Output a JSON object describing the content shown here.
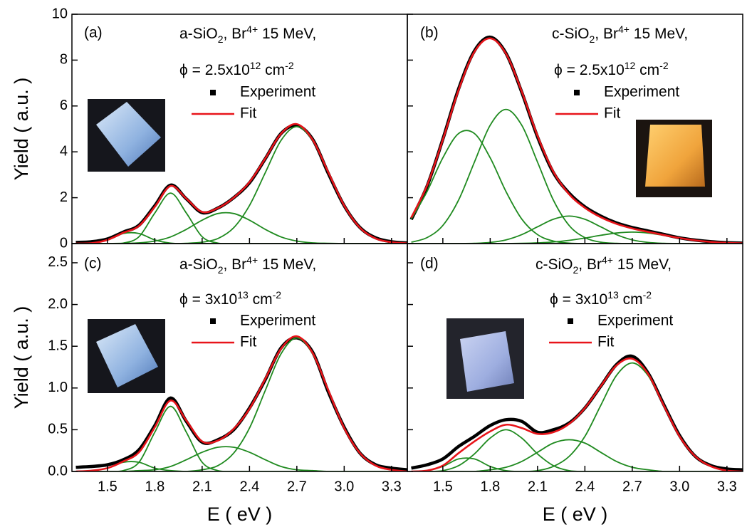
{
  "chart_data": [
    {
      "type": "line",
      "label": "(a)",
      "sample": [
        {
          "text": "a-SiO"
        },
        {
          "sub": "2"
        },
        {
          "text": ", Br"
        },
        {
          "sup": "4+"
        },
        {
          "text": " 15 MeV,"
        }
      ],
      "fluence": [
        {
          "text": "ϕ = 2.5x10"
        },
        {
          "sup": "12"
        },
        {
          "text": " cm"
        },
        {
          "sup": "-2"
        }
      ],
      "ylabel": "Yield ( a.u. )",
      "x": [
        1.3,
        1.4,
        1.5,
        1.6,
        1.7,
        1.8,
        1.9,
        2,
        2.1,
        2.2,
        2.3,
        2.4,
        2.5,
        2.6,
        2.7,
        2.8,
        2.9,
        3,
        3.1,
        3.2,
        3.3,
        3.4
      ],
      "series": [
        {
          "name": "Experiment",
          "color": "#000000",
          "marker": "square",
          "values": [
            0.05,
            0.08,
            0.2,
            0.5,
            0.8,
            1.65,
            2.55,
            1.95,
            1.35,
            1.55,
            2,
            2.65,
            3.7,
            4.8,
            5.15,
            4.55,
            3.05,
            1.65,
            0.7,
            0.25,
            0.08,
            0.03
          ]
        },
        {
          "name": "Fit",
          "color": "#e8141a",
          "values": [
            0,
            0.02,
            0.16,
            0.47,
            0.77,
            1.6,
            2.51,
            1.96,
            1.38,
            1.55,
            2,
            2.68,
            3.71,
            4.79,
            5.21,
            4.53,
            3.1,
            1.66,
            0.69,
            0.22,
            0.06,
            0.01
          ]
        },
        {
          "color": "#1f8a1f",
          "values": [
            0,
            0.02,
            0.16,
            0.44,
            0.44,
            0.16,
            0.02,
            0,
            0,
            0,
            0,
            0,
            0,
            0,
            0,
            0,
            0,
            0,
            0,
            0,
            0,
            0
          ]
        },
        {
          "color": "#1f8a1f",
          "values": [
            0,
            0,
            0,
            0.02,
            0.3,
            1.33,
            2.2,
            1.33,
            0.3,
            0.02,
            0,
            0,
            0,
            0,
            0,
            0,
            0,
            0,
            0,
            0,
            0,
            0
          ]
        },
        {
          "color": "#1f8a1f",
          "values": [
            0,
            0,
            0,
            0.01,
            0.03,
            0.11,
            0.29,
            0.62,
            1.02,
            1.31,
            1.31,
            1.02,
            0.62,
            0.29,
            0.11,
            0.03,
            0.01,
            0,
            0,
            0,
            0,
            0
          ]
        },
        {
          "color": "#1f8a1f",
          "values": [
            0,
            0,
            0,
            0,
            0,
            0,
            0,
            0.01,
            0.06,
            0.22,
            0.69,
            1.66,
            3.09,
            4.5,
            5.1,
            4.5,
            3.09,
            1.66,
            0.69,
            0.22,
            0.06,
            0.01
          ]
        }
      ],
      "xlim": [
        1.275,
        3.4
      ],
      "xticks": [
        1.5,
        1.8,
        2.1,
        2.4,
        2.7,
        3,
        3.3
      ],
      "xtick_labels": false,
      "ylim": [
        0,
        10
      ],
      "yticks": [
        0,
        2,
        4,
        6,
        8,
        10
      ],
      "ytick_labels": true
    },
    {
      "type": "line",
      "label": "(b)",
      "sample": [
        {
          "text": "c-SiO"
        },
        {
          "sub": "2"
        },
        {
          "text": ", Br"
        },
        {
          "sup": "4+"
        },
        {
          "text": " 15 MeV,"
        }
      ],
      "fluence": [
        {
          "text": "ϕ = 2.5x10"
        },
        {
          "sup": "12"
        },
        {
          "text": " cm"
        },
        {
          "sup": "-2"
        }
      ],
      "x": [
        1.3,
        1.4,
        1.5,
        1.6,
        1.7,
        1.8,
        1.9,
        2,
        2.1,
        2.2,
        2.3,
        2.4,
        2.5,
        2.6,
        2.7,
        2.8,
        2.9,
        3,
        3.1,
        3.2,
        3.3,
        3.4
      ],
      "series": [
        {
          "name": "Experiment",
          "color": "#000000",
          "marker": "square",
          "values": [
            1.05,
            2.5,
            4.55,
            6.75,
            8.4,
            9,
            8.3,
            6.6,
            4.65,
            3.1,
            2.2,
            1.6,
            1.2,
            0.9,
            0.7,
            0.55,
            0.4,
            0.25,
            0.15,
            0.08,
            0.04,
            0.02
          ]
        },
        {
          "name": "Fit",
          "color": "#e8141a",
          "values": [
            1.13,
            2.53,
            4.53,
            6.7,
            8.36,
            8.95,
            8.28,
            6.63,
            4.7,
            3.14,
            2.15,
            1.56,
            1.15,
            0.86,
            0.66,
            0.51,
            0.37,
            0.24,
            0.14,
            0.07,
            0.03,
            0.01
          ]
        },
        {
          "color": "#1f8a1f",
          "values": [
            1.07,
            2.27,
            3.74,
            4.8,
            4.8,
            3.74,
            2.27,
            1.07,
            0.39,
            0.11,
            0.02,
            0,
            0,
            0,
            0,
            0,
            0,
            0,
            0,
            0,
            0,
            0
          ]
        },
        {
          "color": "#1f8a1f",
          "values": [
            0.06,
            0.26,
            0.79,
            1.9,
            3.55,
            5.16,
            5.85,
            5.16,
            3.55,
            1.9,
            0.79,
            0.26,
            0.06,
            0.01,
            0,
            0,
            0,
            0,
            0,
            0,
            0,
            0
          ]
        },
        {
          "color": "#1f8a1f",
          "values": [
            0,
            0,
            0,
            0,
            0.01,
            0.05,
            0.16,
            0.39,
            0.73,
            1.06,
            1.2,
            1.06,
            0.73,
            0.39,
            0.16,
            0.05,
            0.01,
            0,
            0,
            0,
            0,
            0
          ]
        },
        {
          "color": "#1f8a1f",
          "values": [
            0,
            0,
            0,
            0,
            0,
            0,
            0,
            0.01,
            0.03,
            0.07,
            0.14,
            0.24,
            0.36,
            0.46,
            0.5,
            0.46,
            0.36,
            0.24,
            0.14,
            0.07,
            0.03,
            0.01
          ]
        }
      ],
      "xlim": [
        1.275,
        3.4
      ],
      "xticks": [
        1.5,
        1.8,
        2.1,
        2.4,
        2.7,
        3,
        3.3
      ],
      "xtick_labels": false,
      "ylim": [
        0,
        10
      ],
      "yticks": [
        0,
        2,
        4,
        6,
        8,
        10
      ],
      "ytick_labels": false
    },
    {
      "type": "line",
      "label": "(c)",
      "sample": [
        {
          "text": "a-SiO"
        },
        {
          "sub": "2"
        },
        {
          "text": ", Br"
        },
        {
          "sup": "4+"
        },
        {
          "text": " 15 MeV,"
        }
      ],
      "fluence": [
        {
          "text": "ϕ = 3x10"
        },
        {
          "sup": "13"
        },
        {
          "text": " cm"
        },
        {
          "sup": "-2"
        }
      ],
      "xlabel": "E ( eV )",
      "ylabel": "Yield ( a.u. )",
      "x": [
        1.3,
        1.4,
        1.5,
        1.6,
        1.7,
        1.8,
        1.9,
        2,
        2.1,
        2.2,
        2.3,
        2.4,
        2.5,
        2.6,
        2.7,
        2.8,
        2.9,
        3,
        3.1,
        3.2,
        3.3,
        3.4
      ],
      "series": [
        {
          "name": "Experiment",
          "color": "#000000",
          "marker": "square",
          "values": [
            0.05,
            0.06,
            0.08,
            0.14,
            0.26,
            0.55,
            0.88,
            0.6,
            0.35,
            0.38,
            0.5,
            0.76,
            1.1,
            1.48,
            1.6,
            1.43,
            0.95,
            0.53,
            0.22,
            0.08,
            0.04,
            0.02
          ]
        },
        {
          "name": "Fit",
          "color": "#e8141a",
          "values": [
            0,
            0.01,
            0.04,
            0.12,
            0.23,
            0.53,
            0.85,
            0.61,
            0.36,
            0.37,
            0.51,
            0.75,
            1.11,
            1.47,
            1.62,
            1.42,
            0.97,
            0.52,
            0.22,
            0.07,
            0.02,
            0
          ]
        },
        {
          "color": "#1f8a1f",
          "values": [
            0,
            0.01,
            0.04,
            0.11,
            0.11,
            0.04,
            0.01,
            0,
            0,
            0,
            0,
            0,
            0,
            0,
            0,
            0,
            0,
            0,
            0,
            0,
            0,
            0
          ]
        },
        {
          "color": "#1f8a1f",
          "values": [
            0,
            0,
            0,
            0.01,
            0.11,
            0.47,
            0.78,
            0.47,
            0.11,
            0.01,
            0,
            0,
            0,
            0,
            0,
            0,
            0,
            0,
            0,
            0,
            0,
            0
          ]
        },
        {
          "color": "#1f8a1f",
          "values": [
            0,
            0,
            0,
            0,
            0.01,
            0.02,
            0.06,
            0.14,
            0.23,
            0.29,
            0.29,
            0.23,
            0.14,
            0.06,
            0.02,
            0.01,
            0,
            0,
            0,
            0,
            0,
            0
          ]
        },
        {
          "color": "#1f8a1f",
          "values": [
            0,
            0,
            0,
            0,
            0,
            0,
            0,
            0,
            0.02,
            0.07,
            0.22,
            0.52,
            0.97,
            1.41,
            1.6,
            1.41,
            0.97,
            0.52,
            0.22,
            0.07,
            0.02,
            0
          ]
        }
      ],
      "xlim": [
        1.275,
        3.4
      ],
      "xticks": [
        1.5,
        1.8,
        2.1,
        2.4,
        2.7,
        {
          "value": 3,
          "label": "3.0"
        },
        3.3
      ],
      "xtick_labels": true,
      "ylim": [
        0,
        2.73
      ],
      "yticks": [
        {
          "value": 0,
          "label": "0.0"
        },
        0.5,
        {
          "value": 1,
          "label": "1.0"
        },
        1.5,
        {
          "value": 2,
          "label": "2.0"
        },
        2.5
      ],
      "ytick_labels": true
    },
    {
      "type": "line",
      "label": "(d)",
      "sample": [
        {
          "text": "c-SiO"
        },
        {
          "sub": "2"
        },
        {
          "text": ", Br"
        },
        {
          "sup": "4+"
        },
        {
          "text": " 15 MeV,"
        }
      ],
      "fluence": [
        {
          "text": "ϕ = 3x10"
        },
        {
          "sup": "13"
        },
        {
          "text": " cm"
        },
        {
          "sup": "-2"
        }
      ],
      "xlabel": "E ( eV )",
      "x": [
        1.3,
        1.4,
        1.5,
        1.6,
        1.7,
        1.8,
        1.9,
        2,
        2.1,
        2.2,
        2.3,
        2.4,
        2.5,
        2.6,
        2.7,
        2.8,
        2.9,
        3,
        3.1,
        3.2,
        3.3,
        3.4
      ],
      "series": [
        {
          "name": "Experiment",
          "color": "#000000",
          "marker": "square",
          "values": [
            0.04,
            0.08,
            0.15,
            0.3,
            0.42,
            0.55,
            0.62,
            0.6,
            0.47,
            0.5,
            0.58,
            0.76,
            1.02,
            1.28,
            1.38,
            1.18,
            0.8,
            0.43,
            0.18,
            0.07,
            0.03,
            0.02
          ]
        },
        {
          "name": "Fit",
          "color": "#e8141a",
          "values": [
            0,
            0.01,
            0.07,
            0.22,
            0.36,
            0.48,
            0.56,
            0.52,
            0.45,
            0.47,
            0.57,
            0.76,
            1.02,
            1.27,
            1.35,
            1.17,
            0.79,
            0.42,
            0.18,
            0.06,
            0.01,
            0
          ]
        },
        {
          "color": "#1f8a1f",
          "values": [
            0,
            0.01,
            0.06,
            0.15,
            0.15,
            0.06,
            0.01,
            0,
            0,
            0,
            0,
            0,
            0,
            0,
            0,
            0,
            0,
            0,
            0,
            0,
            0,
            0
          ]
        },
        {
          "color": "#1f8a1f",
          "values": [
            0,
            0,
            0.01,
            0.07,
            0.21,
            0.4,
            0.5,
            0.4,
            0.21,
            0.07,
            0.01,
            0,
            0,
            0,
            0,
            0,
            0,
            0,
            0,
            0,
            0,
            0
          ]
        },
        {
          "color": "#1f8a1f",
          "values": [
            0,
            0,
            0,
            0,
            0,
            0.02,
            0.05,
            0.12,
            0.23,
            0.34,
            0.38,
            0.34,
            0.23,
            0.12,
            0.05,
            0.02,
            0,
            0,
            0,
            0,
            0,
            0
          ]
        },
        {
          "color": "#1f8a1f",
          "values": [
            0,
            0,
            0,
            0,
            0,
            0,
            0,
            0,
            0.01,
            0.06,
            0.18,
            0.42,
            0.79,
            1.15,
            1.3,
            1.15,
            0.79,
            0.42,
            0.18,
            0.06,
            0.01,
            0
          ]
        }
      ],
      "xlim": [
        1.275,
        3.4
      ],
      "xticks": [
        1.5,
        1.8,
        2.1,
        2.4,
        2.7,
        {
          "value": 3,
          "label": "3.0"
        },
        3.3
      ],
      "xtick_labels": true,
      "ylim": [
        0,
        2.73
      ],
      "yticks": [
        0,
        0.5,
        1,
        1.5,
        2,
        2.5
      ],
      "ytick_labels": false
    }
  ]
}
